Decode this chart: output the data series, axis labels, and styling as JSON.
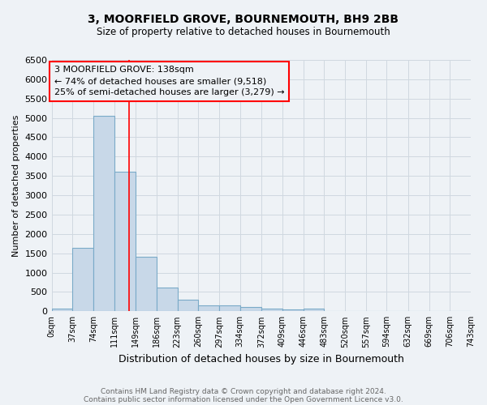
{
  "title": "3, MOORFIELD GROVE, BOURNEMOUTH, BH9 2BB",
  "subtitle": "Size of property relative to detached houses in Bournemouth",
  "xlabel": "Distribution of detached houses by size in Bournemouth",
  "ylabel": "Number of detached properties",
  "bin_edges": [
    0,
    37,
    74,
    111,
    149,
    186,
    223,
    260,
    297,
    334,
    372,
    409,
    446,
    483,
    520,
    557,
    594,
    632,
    669,
    706,
    743
  ],
  "bar_heights": [
    75,
    1650,
    5050,
    3600,
    1400,
    610,
    310,
    160,
    145,
    105,
    75,
    45,
    65,
    0,
    0,
    0,
    0,
    0,
    0,
    0
  ],
  "bar_color": "#c8d8e8",
  "bar_edgecolor": "#7aaac8",
  "grid_color": "#d0d8e0",
  "property_line_x": 138,
  "property_line_color": "red",
  "annotation_line1": "3 MOORFIELD GROVE: 138sqm",
  "annotation_line2": "← 74% of detached houses are smaller (9,518)",
  "annotation_line3": "25% of semi-detached houses are larger (3,279) →",
  "annotation_box_edgecolor": "red",
  "ylim": [
    0,
    6500
  ],
  "yticks": [
    0,
    500,
    1000,
    1500,
    2000,
    2500,
    3000,
    3500,
    4000,
    4500,
    5000,
    5500,
    6000,
    6500
  ],
  "footer_line1": "Contains HM Land Registry data © Crown copyright and database right 2024.",
  "footer_line2": "Contains public sector information licensed under the Open Government Licence v3.0.",
  "background_color": "#eef2f6",
  "title_fontsize": 10,
  "subtitle_fontsize": 8.5
}
